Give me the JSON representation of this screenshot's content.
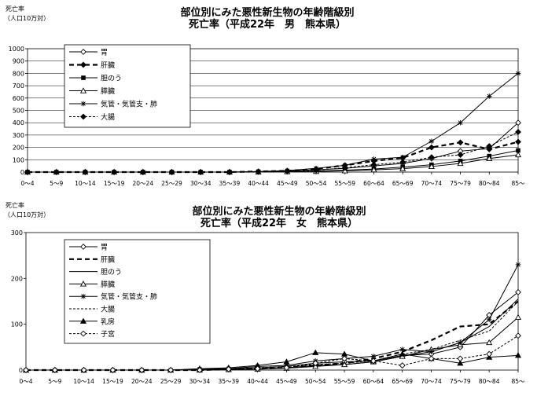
{
  "chart_data": [
    {
      "type": "line",
      "title": "部位別にみた悪性新生物の年齢階級別",
      "subtitle": "死亡率（平成22年　男　熊本県）",
      "ylabel": "死亡率",
      "ylabel_unit": "（人口10万対）",
      "xlabel": "",
      "ylim": [
        0,
        1000
      ],
      "yticks": [
        0,
        100,
        200,
        300,
        400,
        500,
        600,
        700,
        800,
        900,
        1000
      ],
      "grid": true,
      "legend": "top-left",
      "categories": [
        "0～4",
        "5～9",
        "10～14",
        "15～19",
        "20～24",
        "25～29",
        "30～34",
        "35～39",
        "40～44",
        "45～49",
        "50～54",
        "55～59",
        "60～64",
        "65～69",
        "70～74",
        "75～79",
        "80～84",
        "85～"
      ],
      "series": [
        {
          "name": "胃",
          "style": "solid",
          "marker": "diamond-open",
          "values": [
            0,
            0,
            0,
            0,
            0,
            0,
            0,
            0,
            3,
            8,
            18,
            30,
            50,
            70,
            110,
            170,
            190,
            400
          ]
        },
        {
          "name": "肝臓",
          "style": "dashed-bold",
          "marker": "diamond-filled",
          "values": [
            0,
            0,
            0,
            0,
            0,
            0,
            0,
            0,
            5,
            10,
            25,
            55,
            90,
            115,
            200,
            240,
            185,
            245
          ]
        },
        {
          "name": "胆のう",
          "style": "solid",
          "marker": "square-filled",
          "values": [
            0,
            0,
            0,
            0,
            0,
            0,
            0,
            0,
            0,
            3,
            8,
            15,
            25,
            40,
            60,
            90,
            130,
            175
          ]
        },
        {
          "name": "膵臓",
          "style": "solid",
          "marker": "triangle-open",
          "values": [
            0,
            0,
            0,
            0,
            0,
            0,
            0,
            0,
            0,
            3,
            5,
            10,
            18,
            28,
            45,
            70,
            110,
            140
          ]
        },
        {
          "name": "気管・気管支・肺",
          "style": "solid",
          "marker": "star",
          "values": [
            0,
            0,
            0,
            0,
            0,
            0,
            0,
            0,
            5,
            12,
            30,
            55,
            105,
            120,
            250,
            400,
            615,
            800
          ]
        },
        {
          "name": "大腸",
          "style": "dashed",
          "marker": "diamond-filled",
          "values": [
            0,
            0,
            0,
            0,
            0,
            0,
            0,
            0,
            3,
            7,
            15,
            35,
            60,
            80,
            120,
            140,
            210,
            325
          ]
        }
      ]
    },
    {
      "type": "line",
      "title": "部位別にみた悪性新生物の年齢階級別",
      "subtitle": "死亡率（平成22年　女　熊本県）",
      "ylabel": "死亡率",
      "ylabel_unit": "（人口10万対）",
      "xlabel": "",
      "ylim": [
        0,
        300
      ],
      "yticks": [
        0,
        100,
        200,
        300
      ],
      "grid": false,
      "legend": "top-left",
      "categories": [
        "0～4",
        "5～9",
        "10～14",
        "15～19",
        "20～24",
        "25～29",
        "30～34",
        "35～39",
        "40～44",
        "45～49",
        "50～54",
        "55～59",
        "60～64",
        "65～69",
        "70～74",
        "75～79",
        "80～84",
        "85～"
      ],
      "series": [
        {
          "name": "胃",
          "style": "solid",
          "marker": "diamond-open",
          "values": [
            0,
            0,
            0,
            0,
            0,
            0,
            2,
            3,
            5,
            8,
            15,
            18,
            20,
            32,
            35,
            50,
            120,
            170
          ]
        },
        {
          "name": "肝臓",
          "style": "dashed-bold",
          "marker": "none",
          "values": [
            0,
            0,
            0,
            0,
            0,
            0,
            0,
            2,
            3,
            5,
            10,
            15,
            25,
            40,
            65,
            95,
            100,
            150
          ]
        },
        {
          "name": "胆のう",
          "style": "solid",
          "marker": "none",
          "values": [
            0,
            0,
            0,
            0,
            0,
            0,
            0,
            1,
            2,
            5,
            10,
            12,
            18,
            30,
            40,
            60,
            95,
            155
          ]
        },
        {
          "name": "膵臓",
          "style": "solid",
          "marker": "triangle-open",
          "values": [
            0,
            0,
            0,
            0,
            0,
            0,
            0,
            1,
            2,
            4,
            8,
            12,
            18,
            30,
            45,
            55,
            60,
            115
          ]
        },
        {
          "name": "気管・気管支・肺",
          "style": "solid",
          "marker": "star",
          "values": [
            0,
            0,
            0,
            0,
            0,
            0,
            2,
            3,
            8,
            10,
            20,
            25,
            30,
            45,
            40,
            60,
            110,
            230
          ]
        },
        {
          "name": "大腸",
          "style": "dashed",
          "marker": "none",
          "values": [
            0,
            0,
            0,
            0,
            0,
            0,
            1,
            2,
            5,
            8,
            12,
            15,
            20,
            35,
            45,
            65,
            85,
            150
          ]
        },
        {
          "name": "乳房",
          "style": "solid",
          "marker": "triangle-filled",
          "values": [
            0,
            0,
            0,
            0,
            0,
            0,
            3,
            5,
            10,
            18,
            38,
            35,
            20,
            35,
            25,
            15,
            28,
            32
          ]
        },
        {
          "name": "子宮",
          "style": "dashed",
          "marker": "diamond-open",
          "values": [
            0,
            0,
            0,
            0,
            0,
            0,
            0,
            2,
            3,
            5,
            15,
            25,
            20,
            10,
            25,
            25,
            35,
            75
          ]
        }
      ]
    }
  ]
}
